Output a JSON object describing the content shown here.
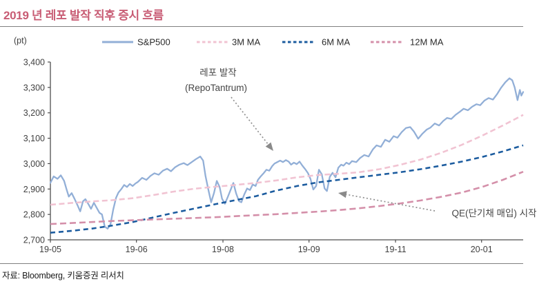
{
  "title": "2019 년 레포 발작 직후 증시 흐름",
  "unit_label": "(pt)",
  "source": "자료: Bloomberg, 키움증권 리서치",
  "colors": {
    "title": "#c85c74",
    "sp500": "#92afd7",
    "ma3": "#f1c3d2",
    "ma6": "#1c5c9f",
    "ma12": "#d48fa9",
    "axis": "#4d4d4d",
    "tick_text": "#3f3f3f",
    "annotation_text": "#464646",
    "arrow": "#8f8f8f"
  },
  "annotations": {
    "repo": {
      "line1": "레포 발작",
      "line2": "(RepoTantrum)"
    },
    "qe": {
      "text": "QE(단기채 매입) 시작"
    }
  },
  "chart_data": {
    "type": "line",
    "title": "2019 년 레포 발작 직후 증시 흐름",
    "ylabel": "(pt)",
    "ylim": [
      2700,
      3400
    ],
    "ytick_step": 100,
    "grid": false,
    "legend_position": "top",
    "xticklabels": [
      "19-05",
      "19-06",
      "19-08",
      "19-09",
      "19-11",
      "20-01"
    ],
    "xticks_t": [
      0,
      0.182,
      0.365,
      0.547,
      0.73,
      0.912
    ],
    "series": [
      {
        "name": "S&P500",
        "color": "#92afd7",
        "style": "solid",
        "points": [
          [
            0,
            2924
          ],
          [
            0.007,
            2950
          ],
          [
            0.015,
            2940
          ],
          [
            0.022,
            2954
          ],
          [
            0.029,
            2932
          ],
          [
            0.034,
            2900
          ],
          [
            0.039,
            2870
          ],
          [
            0.045,
            2884
          ],
          [
            0.051,
            2862
          ],
          [
            0.057,
            2838
          ],
          [
            0.063,
            2812
          ],
          [
            0.069,
            2852
          ],
          [
            0.074,
            2860
          ],
          [
            0.08,
            2842
          ],
          [
            0.086,
            2822
          ],
          [
            0.092,
            2846
          ],
          [
            0.098,
            2826
          ],
          [
            0.104,
            2806
          ],
          [
            0.109,
            2800
          ],
          [
            0.115,
            2752
          ],
          [
            0.121,
            2744
          ],
          [
            0.127,
            2760
          ],
          [
            0.133,
            2820
          ],
          [
            0.139,
            2866
          ],
          [
            0.144,
            2886
          ],
          [
            0.15,
            2900
          ],
          [
            0.156,
            2916
          ],
          [
            0.162,
            2908
          ],
          [
            0.168,
            2920
          ],
          [
            0.174,
            2912
          ],
          [
            0.18,
            2922
          ],
          [
            0.185,
            2928
          ],
          [
            0.194,
            2944
          ],
          [
            0.203,
            2936
          ],
          [
            0.212,
            2952
          ],
          [
            0.22,
            2962
          ],
          [
            0.229,
            2956
          ],
          [
            0.238,
            2972
          ],
          [
            0.247,
            2980
          ],
          [
            0.255,
            2970
          ],
          [
            0.264,
            2986
          ],
          [
            0.273,
            2996
          ],
          [
            0.282,
            3002
          ],
          [
            0.29,
            2994
          ],
          [
            0.299,
            3006
          ],
          [
            0.308,
            3018
          ],
          [
            0.317,
            3028
          ],
          [
            0.323,
            3012
          ],
          [
            0.328,
            2952
          ],
          [
            0.334,
            2898
          ],
          [
            0.34,
            2848
          ],
          [
            0.346,
            2884
          ],
          [
            0.352,
            2932
          ],
          [
            0.358,
            2908
          ],
          [
            0.363,
            2862
          ],
          [
            0.369,
            2842
          ],
          [
            0.375,
            2868
          ],
          [
            0.381,
            2896
          ],
          [
            0.387,
            2924
          ],
          [
            0.393,
            2882
          ],
          [
            0.399,
            2852
          ],
          [
            0.404,
            2848
          ],
          [
            0.41,
            2878
          ],
          [
            0.416,
            2902
          ],
          [
            0.422,
            2896
          ],
          [
            0.428,
            2918
          ],
          [
            0.434,
            2912
          ],
          [
            0.439,
            2936
          ],
          [
            0.445,
            2950
          ],
          [
            0.451,
            2962
          ],
          [
            0.457,
            2976
          ],
          [
            0.463,
            2972
          ],
          [
            0.469,
            2990
          ],
          [
            0.474,
            3000
          ],
          [
            0.48,
            3006
          ],
          [
            0.486,
            3012
          ],
          [
            0.492,
            3006
          ],
          [
            0.498,
            3014
          ],
          [
            0.504,
            3008
          ],
          [
            0.509,
            2996
          ],
          [
            0.515,
            3004
          ],
          [
            0.521,
            2998
          ],
          [
            0.527,
            3008
          ],
          [
            0.533,
            2992
          ],
          [
            0.539,
            2978
          ],
          [
            0.545,
            2962
          ],
          [
            0.55,
            2940
          ],
          [
            0.556,
            2898
          ],
          [
            0.562,
            2912
          ],
          [
            0.568,
            2976
          ],
          [
            0.574,
            2958
          ],
          [
            0.58,
            2902
          ],
          [
            0.585,
            2892
          ],
          [
            0.591,
            2948
          ],
          [
            0.597,
            2964
          ],
          [
            0.603,
            2946
          ],
          [
            0.609,
            2984
          ],
          [
            0.615,
            2996
          ],
          [
            0.62,
            2992
          ],
          [
            0.626,
            3004
          ],
          [
            0.632,
            2998
          ],
          [
            0.638,
            3010
          ],
          [
            0.647,
            3006
          ],
          [
            0.655,
            3022
          ],
          [
            0.664,
            3034
          ],
          [
            0.673,
            3028
          ],
          [
            0.682,
            3056
          ],
          [
            0.69,
            3072
          ],
          [
            0.699,
            3066
          ],
          [
            0.708,
            3094
          ],
          [
            0.717,
            3086
          ],
          [
            0.726,
            3108
          ],
          [
            0.734,
            3102
          ],
          [
            0.743,
            3124
          ],
          [
            0.752,
            3140
          ],
          [
            0.761,
            3144
          ],
          [
            0.769,
            3126
          ],
          [
            0.778,
            3098
          ],
          [
            0.787,
            3118
          ],
          [
            0.796,
            3134
          ],
          [
            0.804,
            3142
          ],
          [
            0.813,
            3158
          ],
          [
            0.822,
            3150
          ],
          [
            0.831,
            3168
          ],
          [
            0.839,
            3180
          ],
          [
            0.848,
            3176
          ],
          [
            0.857,
            3192
          ],
          [
            0.866,
            3204
          ],
          [
            0.874,
            3216
          ],
          [
            0.883,
            3210
          ],
          [
            0.892,
            3224
          ],
          [
            0.901,
            3234
          ],
          [
            0.909,
            3230
          ],
          [
            0.918,
            3248
          ],
          [
            0.927,
            3258
          ],
          [
            0.936,
            3252
          ],
          [
            0.945,
            3274
          ],
          [
            0.953,
            3298
          ],
          [
            0.962,
            3320
          ],
          [
            0.971,
            3336
          ],
          [
            0.977,
            3328
          ],
          [
            0.982,
            3300
          ],
          [
            0.988,
            3250
          ],
          [
            0.993,
            3290
          ],
          [
            0.996,
            3268
          ],
          [
            1,
            3282
          ]
        ]
      },
      {
        "name": "3M MA",
        "color": "#f1c3d2",
        "style": "dashed",
        "points": [
          [
            0,
            2838
          ],
          [
            0.043,
            2845
          ],
          [
            0.087,
            2851
          ],
          [
            0.13,
            2856
          ],
          [
            0.174,
            2864
          ],
          [
            0.217,
            2876
          ],
          [
            0.261,
            2890
          ],
          [
            0.304,
            2901
          ],
          [
            0.348,
            2909
          ],
          [
            0.391,
            2916
          ],
          [
            0.435,
            2924
          ],
          [
            0.478,
            2934
          ],
          [
            0.522,
            2946
          ],
          [
            0.565,
            2955
          ],
          [
            0.609,
            2960
          ],
          [
            0.652,
            2966
          ],
          [
            0.696,
            2978
          ],
          [
            0.739,
            2995
          ],
          [
            0.783,
            3016
          ],
          [
            0.826,
            3042
          ],
          [
            0.87,
            3074
          ],
          [
            0.913,
            3110
          ],
          [
            0.957,
            3150
          ],
          [
            1,
            3192
          ]
        ]
      },
      {
        "name": "6M MA",
        "color": "#1c5c9f",
        "style": "dashed",
        "points": [
          [
            0,
            2728
          ],
          [
            0.043,
            2735
          ],
          [
            0.087,
            2744
          ],
          [
            0.13,
            2756
          ],
          [
            0.174,
            2770
          ],
          [
            0.217,
            2788
          ],
          [
            0.261,
            2806
          ],
          [
            0.304,
            2823
          ],
          [
            0.348,
            2840
          ],
          [
            0.391,
            2856
          ],
          [
            0.435,
            2872
          ],
          [
            0.478,
            2894
          ],
          [
            0.522,
            2912
          ],
          [
            0.565,
            2926
          ],
          [
            0.609,
            2936
          ],
          [
            0.652,
            2946
          ],
          [
            0.696,
            2956
          ],
          [
            0.739,
            2966
          ],
          [
            0.783,
            2978
          ],
          [
            0.826,
            2992
          ],
          [
            0.87,
            3008
          ],
          [
            0.913,
            3026
          ],
          [
            0.957,
            3048
          ],
          [
            1,
            3072
          ]
        ]
      },
      {
        "name": "12M MA",
        "color": "#d48fa9",
        "style": "dashed",
        "points": [
          [
            0,
            2762
          ],
          [
            0.043,
            2766
          ],
          [
            0.087,
            2770
          ],
          [
            0.13,
            2774
          ],
          [
            0.174,
            2777
          ],
          [
            0.217,
            2780
          ],
          [
            0.261,
            2783
          ],
          [
            0.304,
            2786
          ],
          [
            0.348,
            2789
          ],
          [
            0.391,
            2793
          ],
          [
            0.435,
            2797
          ],
          [
            0.478,
            2801
          ],
          [
            0.522,
            2806
          ],
          [
            0.565,
            2811
          ],
          [
            0.609,
            2817
          ],
          [
            0.652,
            2824
          ],
          [
            0.696,
            2833
          ],
          [
            0.739,
            2843
          ],
          [
            0.783,
            2855
          ],
          [
            0.826,
            2869
          ],
          [
            0.87,
            2886
          ],
          [
            0.913,
            2908
          ],
          [
            0.957,
            2936
          ],
          [
            1,
            2968
          ]
        ]
      }
    ]
  }
}
